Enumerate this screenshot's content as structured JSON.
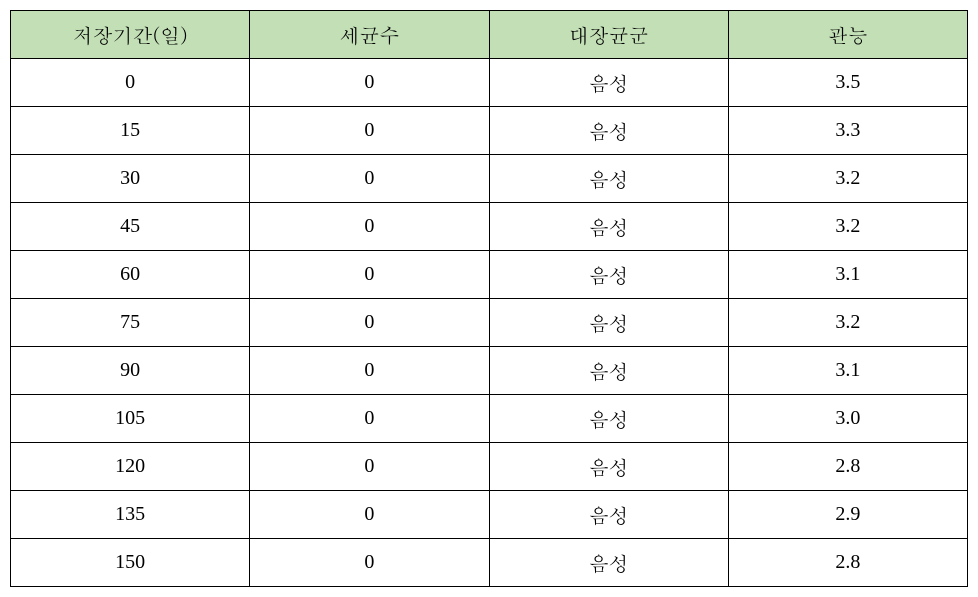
{
  "table": {
    "type": "table",
    "header_bg": "#c2dfb6",
    "border_color": "#000000",
    "columns": [
      {
        "label": "저장기간(일)"
      },
      {
        "label": "세균수"
      },
      {
        "label": "대장균군"
      },
      {
        "label": "관능"
      }
    ],
    "rows": [
      {
        "period": "0",
        "bacteria": "0",
        "coliform": "음성",
        "sensory": "3.5"
      },
      {
        "period": "15",
        "bacteria": "0",
        "coliform": "음성",
        "sensory": "3.3"
      },
      {
        "period": "30",
        "bacteria": "0",
        "coliform": "음성",
        "sensory": "3.2"
      },
      {
        "period": "45",
        "bacteria": "0",
        "coliform": "음성",
        "sensory": "3.2"
      },
      {
        "period": "60",
        "bacteria": "0",
        "coliform": "음성",
        "sensory": "3.1"
      },
      {
        "period": "75",
        "bacteria": "0",
        "coliform": "음성",
        "sensory": "3.2"
      },
      {
        "period": "90",
        "bacteria": "0",
        "coliform": "음성",
        "sensory": "3.1"
      },
      {
        "period": "105",
        "bacteria": "0",
        "coliform": "음성",
        "sensory": "3.0"
      },
      {
        "period": "120",
        "bacteria": "0",
        "coliform": "음성",
        "sensory": "2.8"
      },
      {
        "period": "135",
        "bacteria": "0",
        "coliform": "음성",
        "sensory": "2.9"
      },
      {
        "period": "150",
        "bacteria": "0",
        "coliform": "음성",
        "sensory": "2.8"
      }
    ]
  }
}
